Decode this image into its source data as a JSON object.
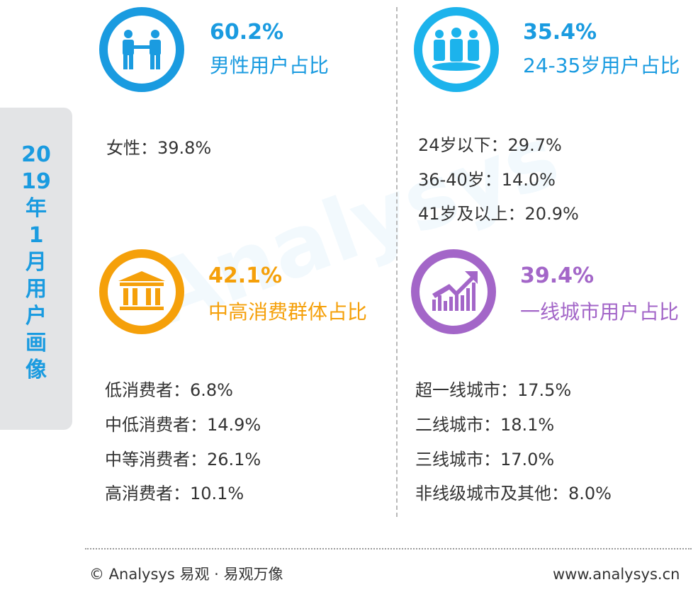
{
  "side_title": [
    "20",
    "19",
    "年",
    "1",
    "月",
    "用",
    "户",
    "画",
    "像"
  ],
  "colors": {
    "blue": "#1a9be0",
    "cyan": "#1cb3ec",
    "orange": "#f5a00a",
    "purple": "#a366c8",
    "tab_bg": "#e3e4e6"
  },
  "quadrants": {
    "gender": {
      "icon": "handshake-people-icon",
      "percent": "60.2%",
      "label": "男性用户占比",
      "stats": [
        "女性：39.8%"
      ]
    },
    "age": {
      "icon": "group-people-icon",
      "percent": "35.4%",
      "label": "24-35岁用户占比",
      "stats": [
        "24岁以下：29.7%",
        "36-40岁：14.0%",
        "41岁及以上：20.9%"
      ]
    },
    "consumption": {
      "icon": "bank-building-icon",
      "percent": "42.1%",
      "label": "中高消费群体占比",
      "stats": [
        "低消费者：6.8%",
        "中低消费者：14.9%",
        "中等消费者：26.1%",
        "高消费者：10.1%"
      ]
    },
    "city": {
      "icon": "growth-chart-icon",
      "percent": "39.4%",
      "label": "一线城市用户占比",
      "stats": [
        "超一线城市：17.5%",
        "二线城市：18.1%",
        "三线城市：17.0%",
        "非线级城市及其他：8.0%"
      ]
    }
  },
  "footer": {
    "copyright": "© Analysys 易观 · 易观万像",
    "website": "www.analysys.cn"
  }
}
